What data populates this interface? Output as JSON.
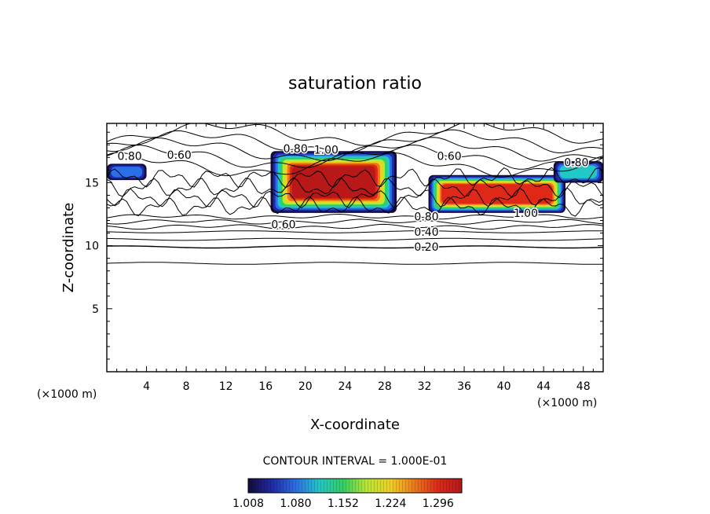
{
  "chart_data": {
    "type": "heatmap",
    "title": "saturation ratio",
    "xlabel": "X-coordinate",
    "ylabel": "Z-coordinate",
    "x_unit_left": "(×1000 m)",
    "x_unit_right": "(×1000 m)",
    "xlim": [
      0,
      50
    ],
    "ylim": [
      0,
      19.7
    ],
    "x_ticks": [
      4,
      8,
      12,
      16,
      20,
      24,
      28,
      32,
      36,
      40,
      44,
      48
    ],
    "y_ticks": [
      5,
      10,
      15
    ],
    "contour_interval_text": "CONTOUR INTERVAL = 1.000E-01",
    "contour_levels": [
      0.2,
      0.4,
      0.6,
      0.8,
      1.0
    ],
    "contour_labels": [
      {
        "text": "0.80",
        "x": 2.3,
        "z": 17.1
      },
      {
        "text": "0.60",
        "x": 7.3,
        "z": 17.2
      },
      {
        "text": "0.80",
        "x": 19.0,
        "z": 17.7
      },
      {
        "text": "1.00",
        "x": 22.1,
        "z": 17.6
      },
      {
        "text": "0.60",
        "x": 34.5,
        "z": 17.1
      },
      {
        "text": "0.80",
        "x": 47.3,
        "z": 16.6
      },
      {
        "text": "1.00",
        "x": 42.2,
        "z": 12.6
      },
      {
        "text": "0.80",
        "x": 32.2,
        "z": 12.3
      },
      {
        "text": "0.60",
        "x": 17.8,
        "z": 11.7
      },
      {
        "text": "0.40",
        "x": 32.2,
        "z": 11.1
      },
      {
        "text": "0.20",
        "x": 32.2,
        "z": 9.9
      }
    ],
    "shaded_regions": [
      {
        "name": "left-edge cloud",
        "x": [
          0,
          4
        ],
        "z": [
          15.2,
          16.5
        ],
        "max": 1.08
      },
      {
        "name": "central cloud",
        "x": [
          16.5,
          29.2
        ],
        "z": [
          12.6,
          17.5
        ],
        "max": 1.32
      },
      {
        "name": "right cloud",
        "x": [
          32.4,
          46.2
        ],
        "z": [
          12.6,
          15.6
        ],
        "max": 1.3
      },
      {
        "name": "right-edge cloud",
        "x": [
          45,
          50
        ],
        "z": [
          15,
          16.7
        ],
        "max": 1.1
      }
    ],
    "colorbar": {
      "ticks": [
        "1.008",
        "1.080",
        "1.152",
        "1.224",
        "1.296"
      ],
      "range": [
        1.008,
        1.332
      ],
      "colors": [
        "#140a3c",
        "#1e2aa8",
        "#2a6ee8",
        "#20c8c8",
        "#30d060",
        "#b8e830",
        "#f0d020",
        "#f07818",
        "#e02818",
        "#b81818"
      ]
    }
  }
}
